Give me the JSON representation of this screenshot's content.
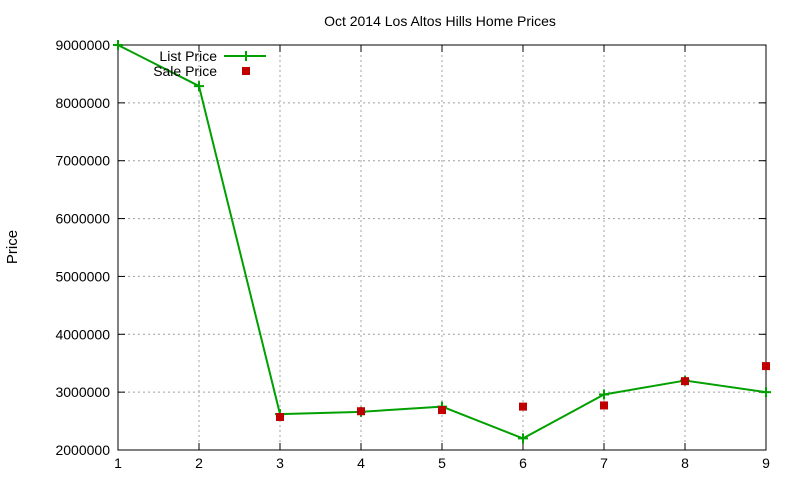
{
  "chart_data": {
    "type": "line",
    "title": "Oct 2014 Los Altos Hills Home Prices",
    "xlabel": "",
    "ylabel": "Price",
    "x": [
      1,
      2,
      3,
      4,
      5,
      6,
      7,
      8,
      9
    ],
    "xlim": [
      1,
      9
    ],
    "ylim": [
      2000000,
      9000000
    ],
    "x_ticks": [
      "1",
      "2",
      "3",
      "4",
      "5",
      "6",
      "7",
      "8",
      "9"
    ],
    "y_ticks": [
      "2000000",
      "3000000",
      "4000000",
      "5000000",
      "6000000",
      "7000000",
      "8000000",
      "9000000"
    ],
    "grid": true,
    "legend_position": "top-left",
    "series": [
      {
        "name": "List Price",
        "style": "line-with-plus-markers",
        "color": "#00a000",
        "values": [
          9000000,
          8290000,
          2620000,
          2660000,
          2750000,
          2200000,
          2960000,
          3200000,
          3000000
        ]
      },
      {
        "name": "Sale Price",
        "style": "square-markers",
        "color": "#c00000",
        "values": [
          null,
          null,
          2570000,
          2670000,
          2690000,
          2750000,
          2770000,
          3190000,
          3450000
        ]
      }
    ]
  }
}
